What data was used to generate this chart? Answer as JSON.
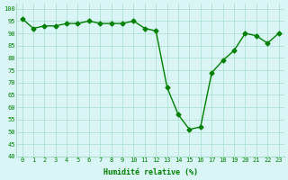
{
  "x": [
    0,
    1,
    2,
    3,
    4,
    5,
    6,
    7,
    8,
    9,
    10,
    11,
    12,
    13,
    14,
    15,
    16,
    17,
    18,
    19,
    20,
    21,
    22,
    23
  ],
  "y": [
    96,
    92,
    93,
    93,
    94,
    94,
    95,
    94,
    94,
    94,
    95,
    92,
    91,
    68,
    57,
    51,
    52,
    74,
    79,
    83,
    90,
    89,
    86,
    90
  ],
  "x_labels": [
    "0",
    "1",
    "2",
    "3",
    "4",
    "5",
    "6",
    "7",
    "8",
    "9",
    "10",
    "11",
    "12",
    "13",
    "14",
    "15",
    "16",
    "17",
    "18",
    "19",
    "20",
    "21",
    "22",
    "23"
  ],
  "xlabel": "Humidité relative (%)",
  "ylim": [
    40,
    102
  ],
  "yticks": [
    40,
    45,
    50,
    55,
    60,
    65,
    70,
    75,
    80,
    85,
    90,
    95,
    100
  ],
  "line_color": "#008000",
  "marker": "D",
  "bg_color": "#d9f5f5",
  "grid_color": "#aaddcc"
}
